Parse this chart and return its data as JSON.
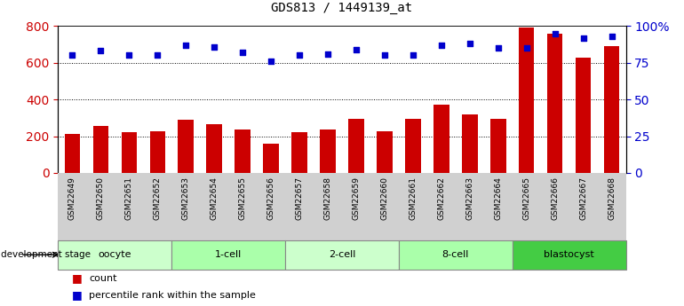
{
  "title": "GDS813 / 1449139_at",
  "samples": [
    "GSM22649",
    "GSM22650",
    "GSM22651",
    "GSM22652",
    "GSM22653",
    "GSM22654",
    "GSM22655",
    "GSM22656",
    "GSM22657",
    "GSM22658",
    "GSM22659",
    "GSM22660",
    "GSM22661",
    "GSM22662",
    "GSM22663",
    "GSM22664",
    "GSM22665",
    "GSM22666",
    "GSM22667",
    "GSM22668"
  ],
  "counts": [
    210,
    255,
    220,
    225,
    290,
    265,
    235,
    158,
    220,
    235,
    295,
    225,
    295,
    370,
    320,
    295,
    790,
    760,
    630,
    690
  ],
  "percentiles": [
    80,
    83,
    80,
    80,
    87,
    86,
    82,
    76,
    80,
    81,
    84,
    80,
    80,
    87,
    88,
    85,
    85,
    95,
    92,
    93
  ],
  "groups": [
    {
      "label": "oocyte",
      "start": 0,
      "end": 3,
      "color": "#ccffcc"
    },
    {
      "label": "1-cell",
      "start": 4,
      "end": 7,
      "color": "#aaffaa"
    },
    {
      "label": "2-cell",
      "start": 8,
      "end": 11,
      "color": "#ccffcc"
    },
    {
      "label": "8-cell",
      "start": 12,
      "end": 15,
      "color": "#aaffaa"
    },
    {
      "label": "blastocyst",
      "start": 16,
      "end": 19,
      "color": "#44cc44"
    }
  ],
  "bar_color": "#cc0000",
  "dot_color": "#0000cc",
  "ylim_left": [
    0,
    800
  ],
  "ylim_right": [
    0,
    100
  ],
  "yticks_left": [
    0,
    200,
    400,
    600,
    800
  ],
  "yticks_right": [
    0,
    25,
    50,
    75,
    100
  ],
  "grid_values": [
    200,
    400,
    600
  ],
  "grid_color": "#000000",
  "background_color": "#ffffff",
  "xlabel_bg": "#d0d0d0",
  "dev_stage_label": "development stage",
  "legend_count": "count",
  "legend_percentile": "percentile rank within the sample",
  "title_fontsize": 10,
  "bar_width": 0.55,
  "dot_size": 20
}
